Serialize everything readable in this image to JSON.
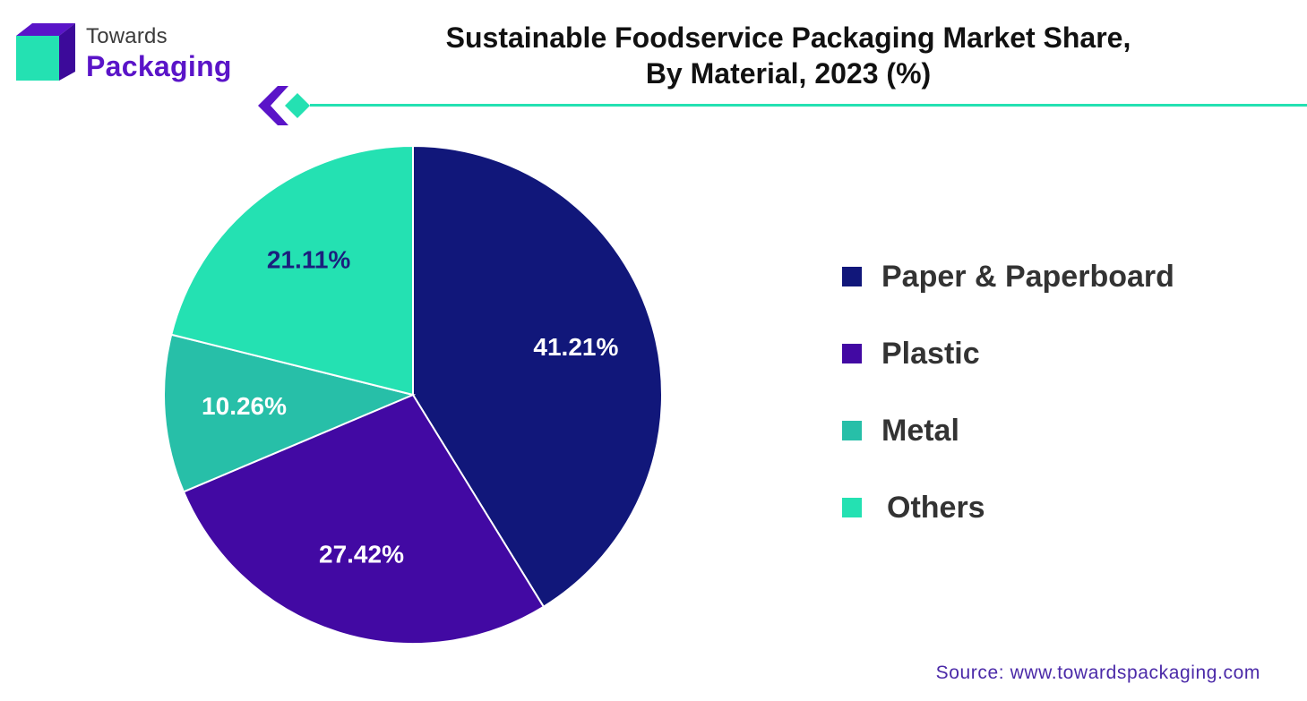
{
  "brand": {
    "line1": "Towards",
    "line2": "Packaging"
  },
  "header": {
    "title_line1": "Sustainable Foodservice Packaging Market Share,",
    "title_line2": "By Material, 2023 (%)"
  },
  "colors": {
    "accent": "#24e1b2",
    "brand_purple": "#5a14c8"
  },
  "chart_data": {
    "type": "pie",
    "title": "Sustainable Foodservice Packaging Market Share, By Material, 2023 (%)",
    "slices": [
      {
        "label": "Paper & Paperboard",
        "value": 41.21,
        "display": "41.21%",
        "color": "#11177a",
        "text_color": "#ffffff"
      },
      {
        "label": "Plastic",
        "value": 27.42,
        "display": "27.42%",
        "color": "#4209a3",
        "text_color": "#ffffff"
      },
      {
        "label": "Metal",
        "value": 10.26,
        "display": "10.26%",
        "color": "#27bfa8",
        "text_color": "#ffffff"
      },
      {
        "label": "Others",
        "value": 21.11,
        "display": "21.11%",
        "color": "#24e1b2",
        "text_color": "#1b1f7d"
      }
    ],
    "legend_position": "right"
  },
  "footer": {
    "source": "Source: www.towardspackaging.com"
  }
}
